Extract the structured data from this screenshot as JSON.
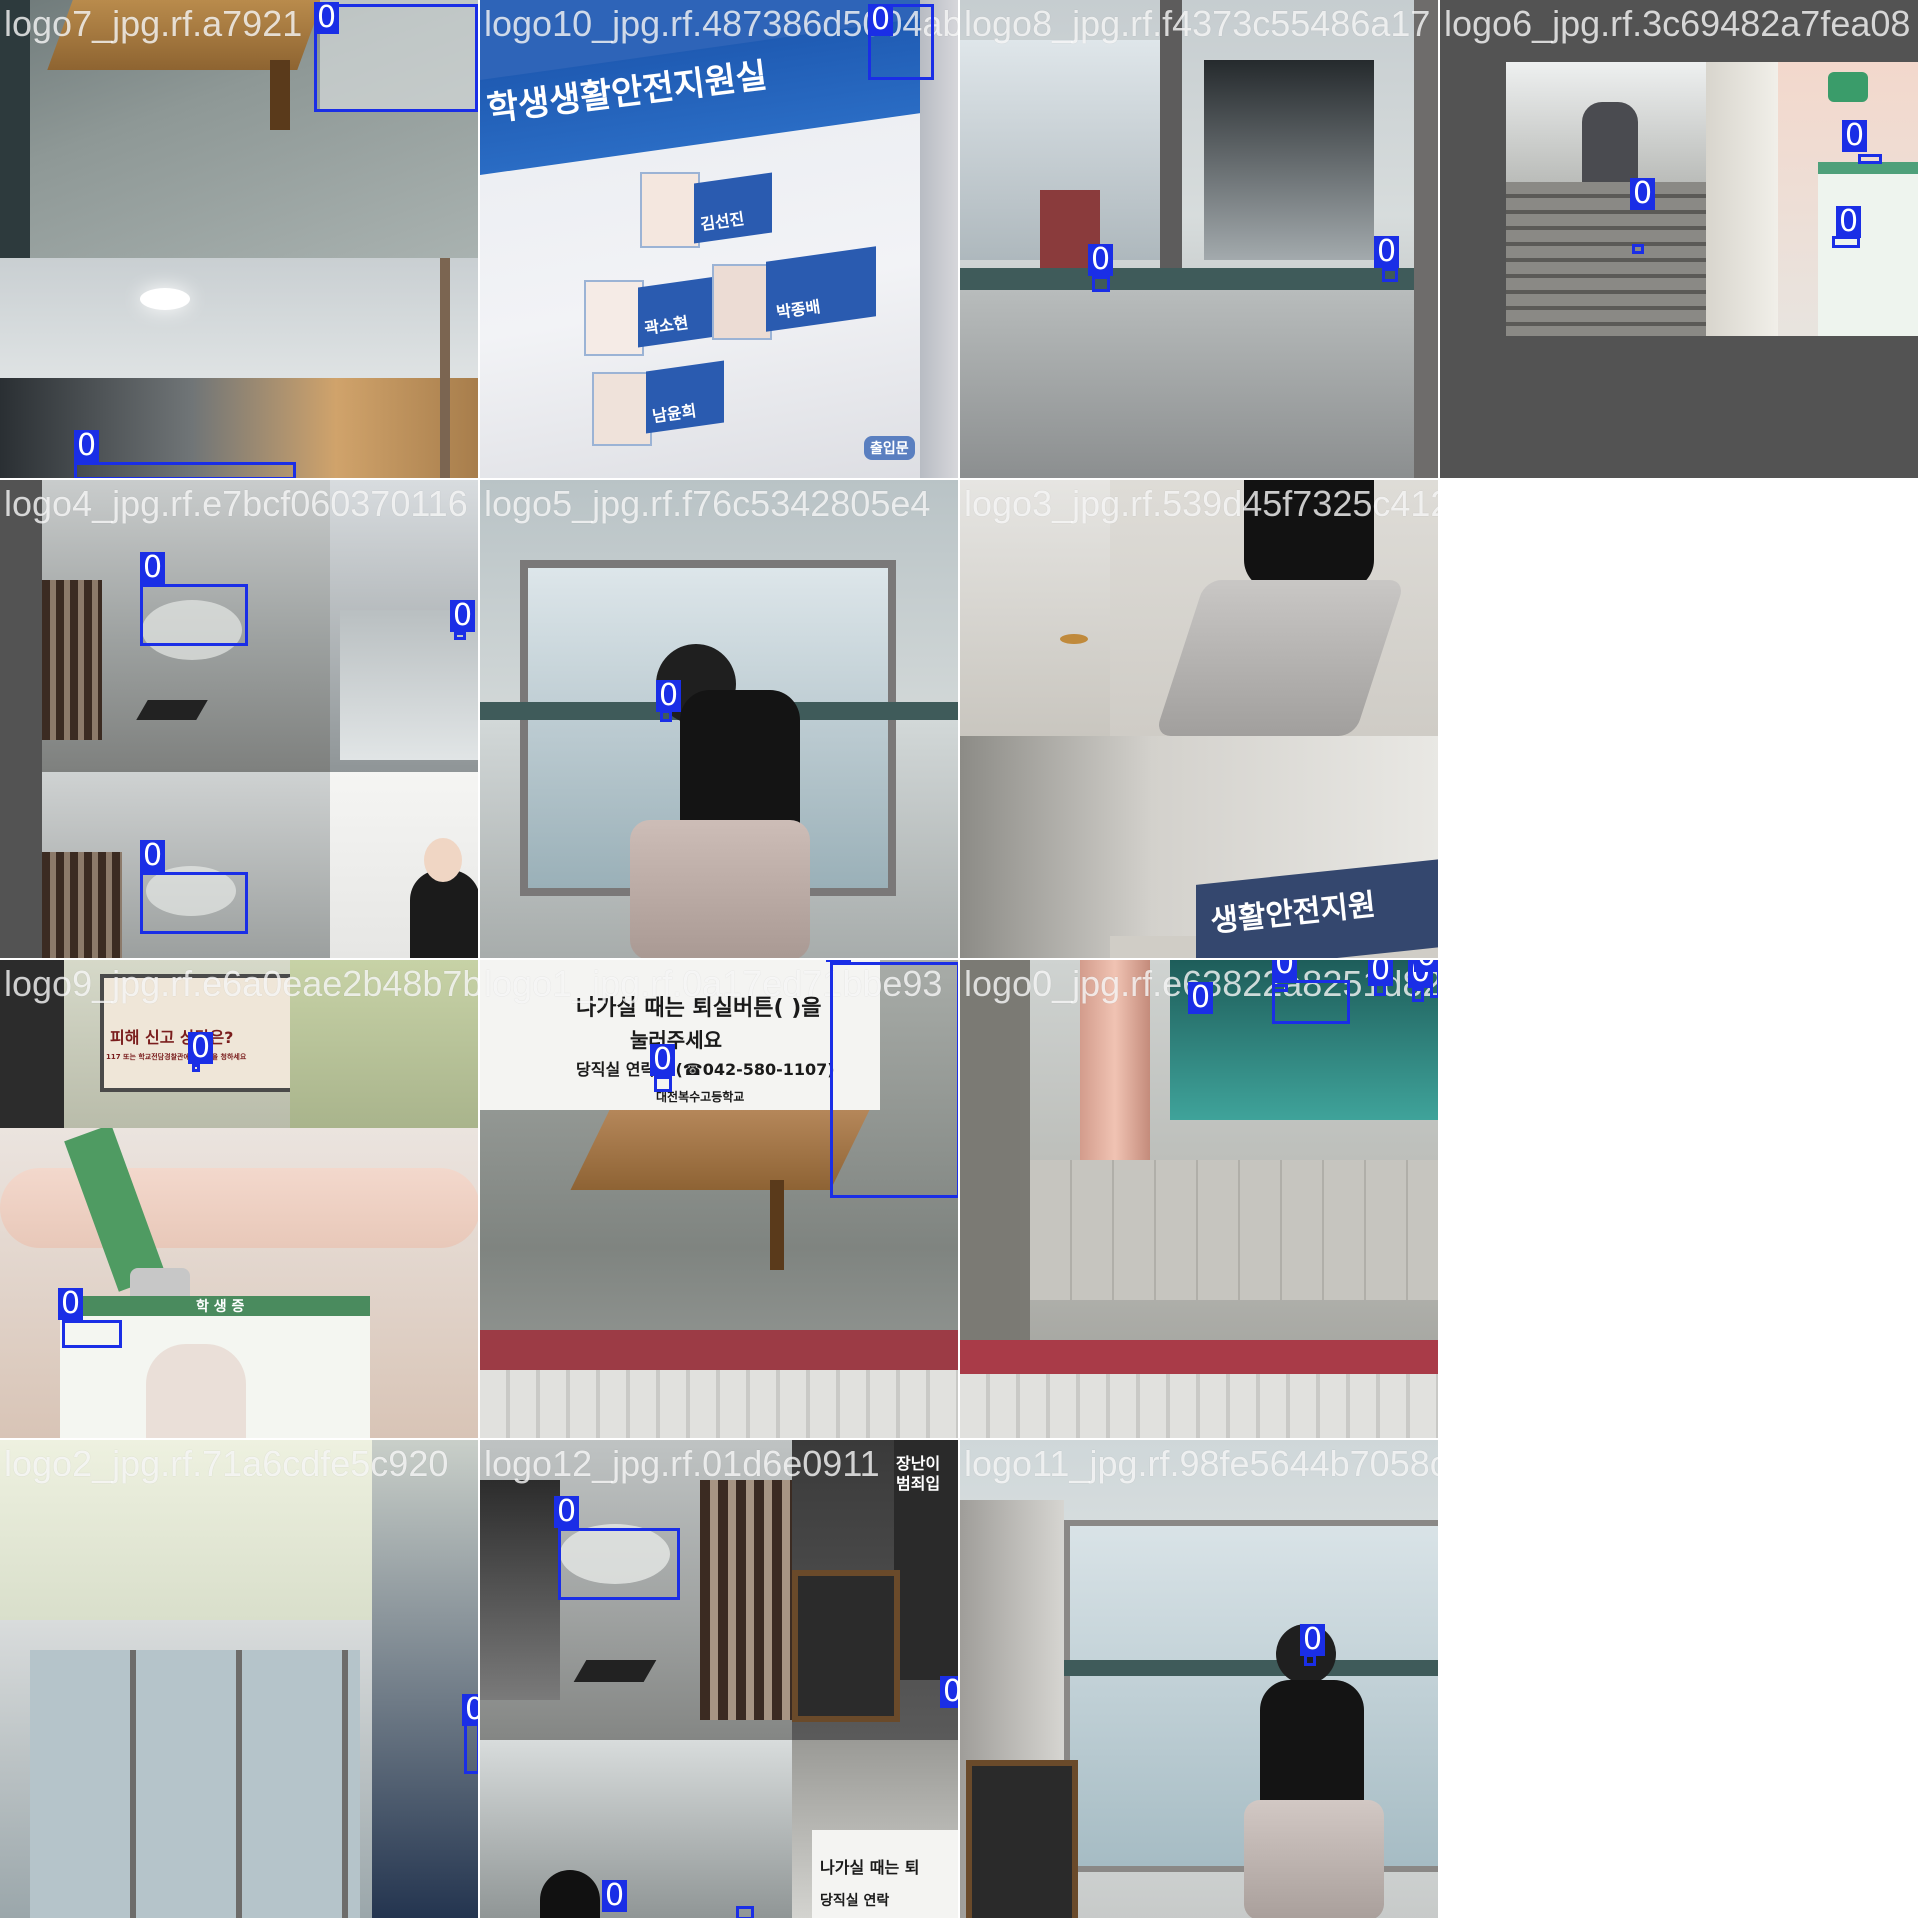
{
  "mosaic": {
    "class_label": "0",
    "tiles": [
      {
        "id": "t1",
        "filename": "logo7_jpg.rf.a7921",
        "boxes": [
          {
            "label": "0"
          },
          {
            "label": "0"
          }
        ]
      },
      {
        "id": "t2",
        "filename": "logo10_jpg.rf.487386d5004ab64c81a05bf41374c55486a17bd50a7eb3c69482a7fea08",
        "boxes": [
          {
            "label": "0"
          }
        ],
        "sign_text": "학생생활안전지원실",
        "names": [
          "김선진",
          "곽소현",
          "박종배",
          "남윤희"
        ],
        "button_text": "출입문"
      },
      {
        "id": "t3",
        "filename": "logo8_jpg.rf.f4373c55486a17",
        "boxes": [
          {
            "label": "0"
          },
          {
            "label": "0"
          }
        ]
      },
      {
        "id": "t4",
        "filename": "logo6_jpg.rf.3c69482a7fea08",
        "boxes": [
          {
            "label": "0"
          },
          {
            "label": "0"
          },
          {
            "label": "0"
          }
        ]
      },
      {
        "id": "t5",
        "filename": "logo4_jpg.rf.e7bcf060370116",
        "boxes": [
          {
            "label": "0"
          },
          {
            "label": "0"
          },
          {
            "label": "0"
          }
        ]
      },
      {
        "id": "t6",
        "filename": "logo5_jpg.rf.f76c5342805e4",
        "boxes": [
          {
            "label": "0"
          }
        ]
      },
      {
        "id": "t7",
        "filename": "logo3_jpg.rf.539d45f7325c412d130a89f1c777ef",
        "boxes": [],
        "sign_text": "생활안전지원"
      },
      {
        "id": "t9",
        "filename": "logo9_jpg.rf.e6a0eae2b48b7b9041",
        "boxes": [
          {
            "label": "0"
          },
          {
            "label": "0"
          }
        ],
        "poster_title": "피해 신고 상담은?",
        "poster_line": "117 또는 학교전담경찰관에게 도움을 청하세요",
        "card_label": "학 생 증"
      },
      {
        "id": "t10",
        "filename": "logo1_jpg.rf.0a17ed71bbe93",
        "boxes": [
          {
            "label": "0"
          },
          {
            "label": "0"
          }
        ],
        "notice_line1": "나가실 때는 퇴실버튼(   )을",
        "notice_line2": "눌러주세요",
        "notice_line3": "당직실 연락처 (☎042-580-1107)",
        "school": "대전복수고등학교"
      },
      {
        "id": "t11",
        "filename": "logo0_jpg.rf.e63822a8251d822d9a17b",
        "boxes": [
          {
            "label": "0"
          },
          {
            "label": "0"
          },
          {
            "label": "0"
          },
          {
            "label": "0"
          },
          {
            "label": "0"
          }
        ]
      },
      {
        "id": "t13",
        "filename": "logo2_jpg.rf.71a6cdfe5c920",
        "boxes": [
          {
            "label": "0"
          }
        ]
      },
      {
        "id": "t14",
        "filename": "logo12_jpg.rf.01d6e0911",
        "boxes": [
          {
            "label": "0"
          },
          {
            "label": "0"
          },
          {
            "label": "0"
          }
        ],
        "sign_text": "장난이 범죄입",
        "notice_line1": "나가실 때는 퇴",
        "notice_line3": "당직실 연락"
      },
      {
        "id": "t15",
        "filename": "logo11_jpg.rf.98fe5644b7058cc6a74787e1",
        "boxes": [
          {
            "label": "0"
          }
        ]
      }
    ]
  }
}
